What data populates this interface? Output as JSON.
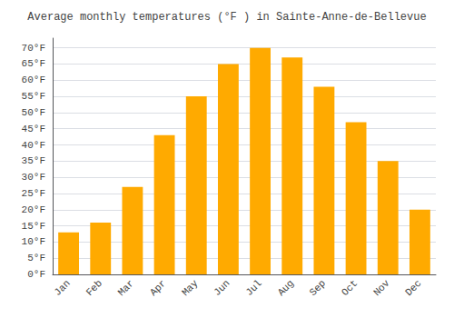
{
  "chart_data": {
    "type": "bar",
    "title": "Average monthly temperatures (°F ) in Sainte-Anne-de-Bellevue",
    "categories": [
      "Jan",
      "Feb",
      "Mar",
      "Apr",
      "May",
      "Jun",
      "Jul",
      "Aug",
      "Sep",
      "Oct",
      "Nov",
      "Dec"
    ],
    "values": [
      13,
      16,
      27,
      43,
      55,
      65,
      70,
      67,
      58,
      47,
      35,
      20
    ],
    "color": "#FFAA00",
    "ylim": [
      0,
      73
    ],
    "yticks": [
      {
        "value": 0,
        "label": "0°F"
      },
      {
        "value": 5,
        "label": "5°F"
      },
      {
        "value": 10,
        "label": "10°F"
      },
      {
        "value": 15,
        "label": "15°F"
      },
      {
        "value": 20,
        "label": "20°F"
      },
      {
        "value": 25,
        "label": "25°F"
      },
      {
        "value": 30,
        "label": "30°F"
      },
      {
        "value": 35,
        "label": "35°F"
      },
      {
        "value": 40,
        "label": "40°F"
      },
      {
        "value": 45,
        "label": "45°F"
      },
      {
        "value": 50,
        "label": "50°F"
      },
      {
        "value": 55,
        "label": "55°F"
      },
      {
        "value": 60,
        "label": "60°F"
      },
      {
        "value": 65,
        "label": "65°F"
      },
      {
        "value": 70,
        "label": "70°F"
      }
    ],
    "grid": true
  }
}
